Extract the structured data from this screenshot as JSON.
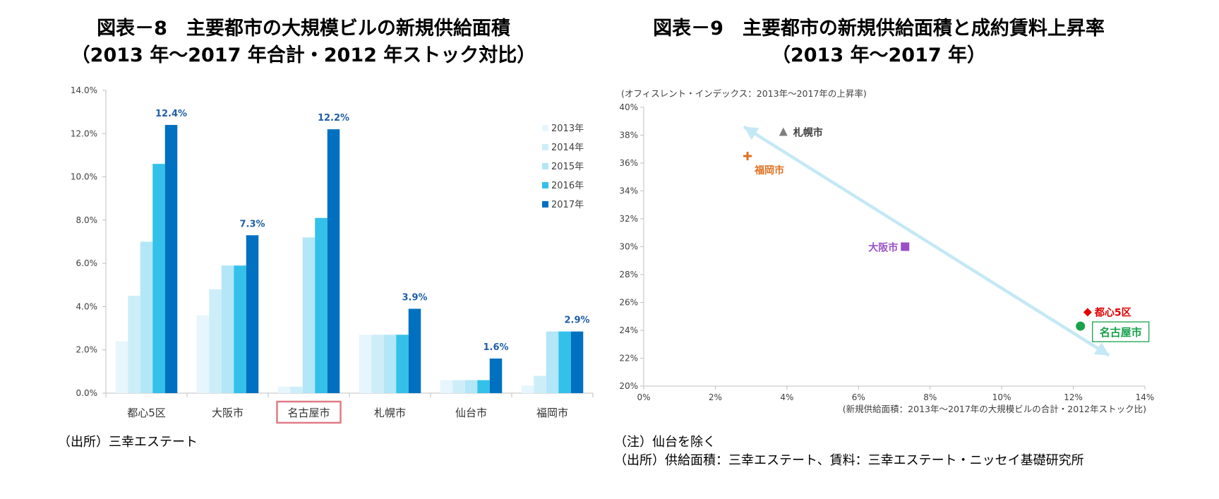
{
  "left_title": {
    "line1": "図表－8　主要都市の大規模ビルの新規供給面積",
    "line2": "（2013 年～2017 年合計・2012 年ストック対比）"
  },
  "right_title": {
    "line1": "図表－9　主要都市の新規供給面積と成約賃料上昇率",
    "line2": "（2013 年～2017 年）"
  },
  "left_source": "（出所）三幸エステート",
  "right_notes": {
    "note": "（注）仙台を除く",
    "source": "（出所）供給面積：三幸エステート、賃料：三幸エステート・ニッセイ基礎研究所"
  },
  "colors": {
    "s2013": "#e7f6fc",
    "s2014": "#cdeef9",
    "s2015": "#b3e6f6",
    "s2016": "#33c1ea",
    "s2017": "#0070c0",
    "label_blue": "#1f5fa8",
    "highlight_box": "#e07b86",
    "arrow": "#c5e8f5",
    "sapporo": "#7f7f7f",
    "fukuoka": "#e07020",
    "osaka": "#9a4fc7",
    "toshin": "#e00000",
    "nagoya": "#16a34a"
  },
  "chart_data": [
    {
      "type": "bar",
      "title": "主要都市の大規模ビルの新規供給面積（2013 年～2017 年合計・2012 年ストック対比）",
      "categories": [
        "都心5区",
        "大阪市",
        "名古屋市",
        "札幌市",
        "仙台市",
        "福岡市"
      ],
      "highlighted_category": "名古屋市",
      "series": [
        {
          "name": "2013年",
          "values": [
            2.4,
            3.6,
            0.3,
            2.7,
            0.6,
            0.35
          ]
        },
        {
          "name": "2014年",
          "values": [
            4.5,
            4.8,
            0.3,
            2.7,
            0.6,
            0.8
          ]
        },
        {
          "name": "2015年",
          "values": [
            7.0,
            5.9,
            7.2,
            2.7,
            0.6,
            2.85
          ]
        },
        {
          "name": "2016年",
          "values": [
            10.6,
            5.9,
            8.1,
            2.7,
            0.6,
            2.85
          ]
        },
        {
          "name": "2017年",
          "values": [
            12.4,
            7.3,
            12.2,
            3.9,
            1.6,
            2.85
          ]
        }
      ],
      "data_labels": [
        "12.4%",
        "7.3%",
        "12.2%",
        "3.9%",
        "1.6%",
        "2.9%"
      ],
      "ylim": [
        0,
        14
      ],
      "yticks": [
        "0.0%",
        "2.0%",
        "4.0%",
        "6.0%",
        "8.0%",
        "10.0%",
        "12.0%",
        "14.0%"
      ],
      "legend_position": "top-right"
    },
    {
      "type": "scatter",
      "title": "主要都市の新規供給面積と成約賃料上昇率（2013 年～2017 年）",
      "ylabel": "(オフィスレント・インデックス：2013年～2017年の上昇率)",
      "xlabel": "(新規供給面積：2013年～2017年の大規模ビルの合計・2012年ストック比)",
      "xlim": [
        0,
        14
      ],
      "ylim": [
        20,
        40
      ],
      "xticks": [
        "0%",
        "2%",
        "4%",
        "6%",
        "8%",
        "10%",
        "12%",
        "14%"
      ],
      "yticks": [
        "20%",
        "22%",
        "24%",
        "26%",
        "28%",
        "30%",
        "32%",
        "34%",
        "36%",
        "38%",
        "40%"
      ],
      "points": [
        {
          "name": "札幌市",
          "x": 3.9,
          "y": 38.2,
          "marker": "triangle"
        },
        {
          "name": "福岡市",
          "x": 2.9,
          "y": 36.5,
          "marker": "plus"
        },
        {
          "name": "大阪市",
          "x": 7.3,
          "y": 30.0,
          "marker": "square"
        },
        {
          "name": "都心5区",
          "x": 12.4,
          "y": 25.3,
          "marker": "diamond"
        },
        {
          "name": "名古屋市",
          "x": 12.2,
          "y": 24.3,
          "marker": "circle"
        }
      ],
      "trend_arrow": {
        "from": [
          2.8,
          38.6
        ],
        "to": [
          13.0,
          22.2
        ],
        "double_headed": true
      }
    }
  ]
}
